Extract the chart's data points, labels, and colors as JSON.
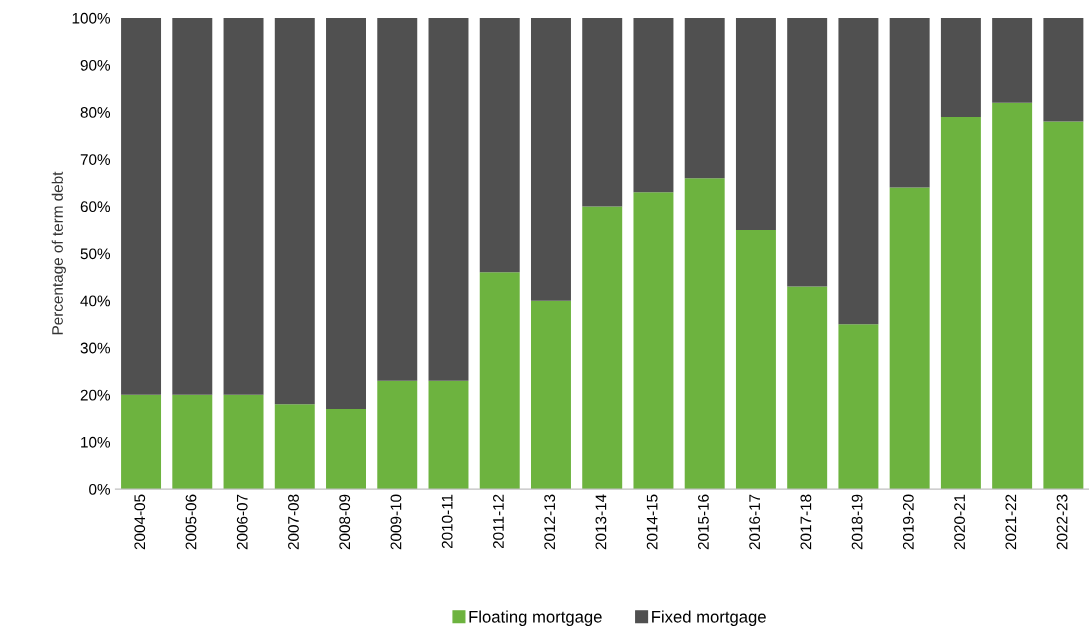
{
  "chart_data": {
    "type": "bar",
    "stacked": true,
    "ylabel": "Percentage of term debt",
    "categories": [
      "2004-05",
      "2005-06",
      "2006-07",
      "2007-08",
      "2008-09",
      "2009-10",
      "2010-11",
      "2011-12",
      "2012-13",
      "2013-14",
      "2014-15",
      "2015-16",
      "2016-17",
      "2017-18",
      "2018-19",
      "2019-20",
      "2020-21",
      "2021-22",
      "2022-23"
    ],
    "series": [
      {
        "name": "Floating mortgage",
        "color": "#6db33f",
        "values": [
          20,
          20,
          20,
          18,
          17,
          23,
          23,
          46,
          40,
          60,
          63,
          66,
          55,
          43,
          35,
          64,
          79,
          82,
          78
        ]
      },
      {
        "name": "Fixed mortgage",
        "color": "#505050",
        "values": [
          80,
          80,
          80,
          82,
          83,
          77,
          77,
          54,
          60,
          40,
          37,
          34,
          45,
          57,
          65,
          36,
          21,
          18,
          22
        ]
      }
    ],
    "ylim": [
      0,
      100
    ],
    "yticks": [
      {
        "value": 0,
        "label": "0%"
      },
      {
        "value": 10,
        "label": "10%"
      },
      {
        "value": 20,
        "label": "20%"
      },
      {
        "value": 30,
        "label": "30%"
      },
      {
        "value": 40,
        "label": "40%"
      },
      {
        "value": 50,
        "label": "50%"
      },
      {
        "value": 60,
        "label": "60%"
      },
      {
        "value": 70,
        "label": "70%"
      },
      {
        "value": 80,
        "label": "80%"
      },
      {
        "value": 90,
        "label": "90%"
      },
      {
        "value": 100,
        "label": "100%"
      }
    ],
    "grid": false,
    "legend": "bottom"
  }
}
